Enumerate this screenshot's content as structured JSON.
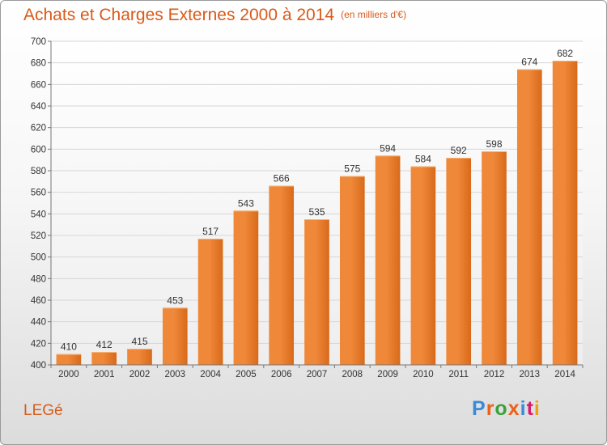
{
  "header": {
    "title": "Achats et Charges Externes 2000 à 2014",
    "unit": "(en milliers d'€)"
  },
  "footer": {
    "commune": "LEGé",
    "brand": "Proxiti",
    "brand_colors": [
      "#3a8ad8",
      "#e8621a",
      "#3aa23a",
      "#e8621a",
      "#3a8ad8",
      "#d81a6a",
      "#e8a21a"
    ]
  },
  "chart_data": {
    "type": "bar",
    "title": "Achats et Charges Externes 2000 à 2014",
    "xlabel": "",
    "ylabel": "",
    "categories": [
      "2000",
      "2001",
      "2002",
      "2003",
      "2004",
      "2005",
      "2006",
      "2007",
      "2008",
      "2009",
      "2010",
      "2011",
      "2012",
      "2013",
      "2014"
    ],
    "values": [
      410,
      412,
      415,
      453,
      517,
      543,
      566,
      535,
      575,
      594,
      584,
      592,
      598,
      674,
      682
    ],
    "ylim": [
      400,
      700
    ],
    "yticks": [
      400,
      420,
      440,
      460,
      480,
      500,
      520,
      540,
      560,
      580,
      600,
      620,
      640,
      660,
      680,
      700
    ],
    "grid": true,
    "bar_color": "#f0883a",
    "bar_color_dark": "#d86a1a"
  }
}
